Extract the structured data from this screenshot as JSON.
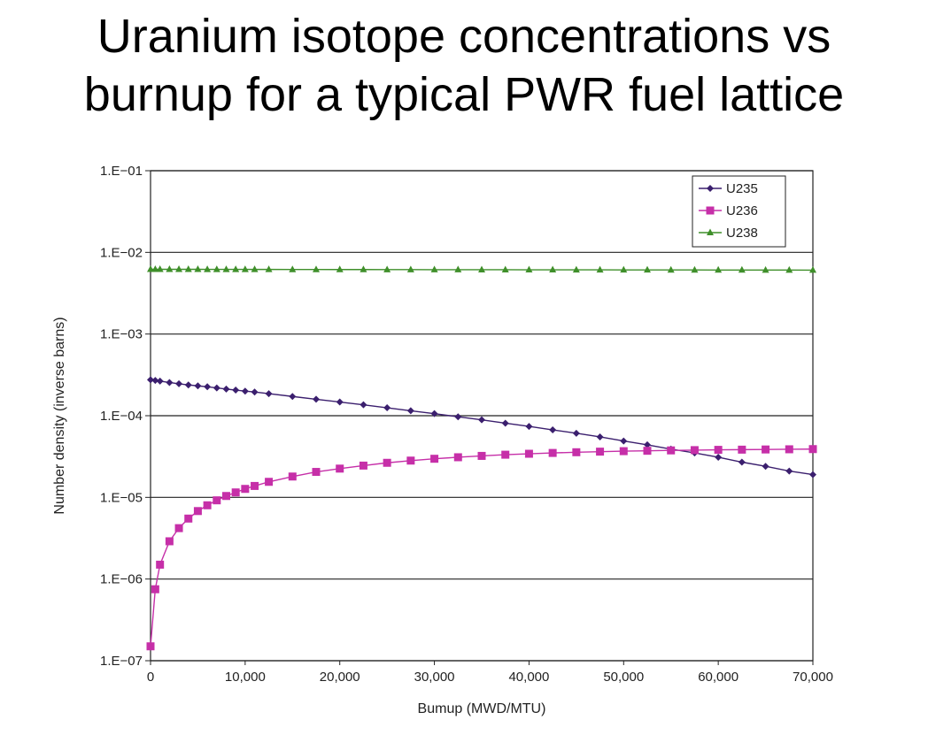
{
  "slide": {
    "title_line1": "Uranium isotope concentrations vs",
    "title_line2": "burnup for a typical PWR fuel lattice"
  },
  "chart_data": {
    "type": "line",
    "xlabel": "Bumup (MWD/MTU)",
    "ylabel": "Number density (inverse barns)",
    "xlim": [
      0,
      70000
    ],
    "ylim": [
      1e-07,
      0.1
    ],
    "yscale": "log",
    "x_ticks": [
      0,
      10000,
      20000,
      30000,
      40000,
      50000,
      60000,
      70000
    ],
    "x_tick_labels": [
      "0",
      "10,000",
      "20,000",
      "30,000",
      "40,000",
      "50,000",
      "60,000",
      "70,000"
    ],
    "y_ticks": [
      1e-07,
      1e-06,
      1e-05,
      0.0001,
      0.001,
      0.01,
      0.1
    ],
    "y_tick_labels": [
      "1.E−07",
      "1.E−06",
      "1.E−05",
      "1.E−04",
      "1.E−03",
      "1.E−02",
      "1.E−01"
    ],
    "grid": "horizontal",
    "legend_position": "top-right",
    "series": [
      {
        "name": "U235",
        "color": "#3b1f6e",
        "marker": "diamond",
        "x": [
          0,
          500,
          1000,
          2000,
          3000,
          4000,
          5000,
          6000,
          7000,
          8000,
          9000,
          10000,
          11000,
          12500,
          15000,
          17500,
          20000,
          22500,
          25000,
          27500,
          30000,
          32500,
          35000,
          37500,
          40000,
          42500,
          45000,
          47500,
          50000,
          52500,
          55000,
          57500,
          60000,
          62500,
          65000,
          67500,
          70000
        ],
        "y": [
          0.000275,
          0.00027,
          0.000265,
          0.000255,
          0.000246,
          0.000238,
          0.000232,
          0.000226,
          0.000219,
          0.000212,
          0.000206,
          0.0002,
          0.000195,
          0.000186,
          0.000172,
          0.000159,
          0.000147,
          0.000136,
          0.000125,
          0.000115,
          0.000106,
          9.7e-05,
          8.9e-05,
          8.1e-05,
          7.4e-05,
          6.7e-05,
          6.1e-05,
          5.5e-05,
          4.9e-05,
          4.4e-05,
          3.9e-05,
          3.5e-05,
          3.1e-05,
          2.7e-05,
          2.4e-05,
          2.1e-05,
          1.9e-05
        ]
      },
      {
        "name": "U236",
        "color": "#c62fa8",
        "marker": "square",
        "x": [
          0,
          500,
          1000,
          2000,
          3000,
          4000,
          5000,
          6000,
          7000,
          8000,
          9000,
          10000,
          11000,
          12500,
          15000,
          17500,
          20000,
          22500,
          25000,
          27500,
          30000,
          32500,
          35000,
          37500,
          40000,
          42500,
          45000,
          47500,
          50000,
          52500,
          55000,
          57500,
          60000,
          62500,
          65000,
          67500,
          70000
        ],
        "y": [
          1.5e-07,
          7.5e-07,
          1.5e-06,
          2.9e-06,
          4.2e-06,
          5.5e-06,
          6.8e-06,
          8e-06,
          9.2e-06,
          1.04e-05,
          1.15e-05,
          1.27e-05,
          1.38e-05,
          1.55e-05,
          1.8e-05,
          2.05e-05,
          2.25e-05,
          2.45e-05,
          2.65e-05,
          2.82e-05,
          2.97e-05,
          3.1e-05,
          3.22e-05,
          3.33e-05,
          3.42e-05,
          3.5e-05,
          3.57e-05,
          3.63e-05,
          3.68e-05,
          3.72e-05,
          3.76e-05,
          3.79e-05,
          3.82e-05,
          3.84e-05,
          3.86e-05,
          3.88e-05,
          3.9e-05
        ]
      },
      {
        "name": "U238",
        "color": "#3f8f2a",
        "marker": "triangle",
        "x": [
          0,
          500,
          1000,
          2000,
          3000,
          4000,
          5000,
          6000,
          7000,
          8000,
          9000,
          10000,
          11000,
          12500,
          15000,
          17500,
          20000,
          22500,
          25000,
          27500,
          30000,
          32500,
          35000,
          37500,
          40000,
          42500,
          45000,
          47500,
          50000,
          52500,
          55000,
          57500,
          60000,
          62500,
          65000,
          67500,
          70000
        ],
        "y": [
          0.0062,
          0.0062,
          0.0062,
          0.0062,
          0.0062,
          0.0062,
          0.0062,
          0.00619,
          0.00619,
          0.00619,
          0.00619,
          0.00619,
          0.00618,
          0.00618,
          0.00617,
          0.00617,
          0.00616,
          0.00616,
          0.00615,
          0.00615,
          0.00614,
          0.00614,
          0.00613,
          0.00613,
          0.00612,
          0.00612,
          0.00611,
          0.00611,
          0.0061,
          0.0061,
          0.00609,
          0.00609,
          0.00608,
          0.00608,
          0.00607,
          0.00607,
          0.00606
        ]
      }
    ]
  }
}
